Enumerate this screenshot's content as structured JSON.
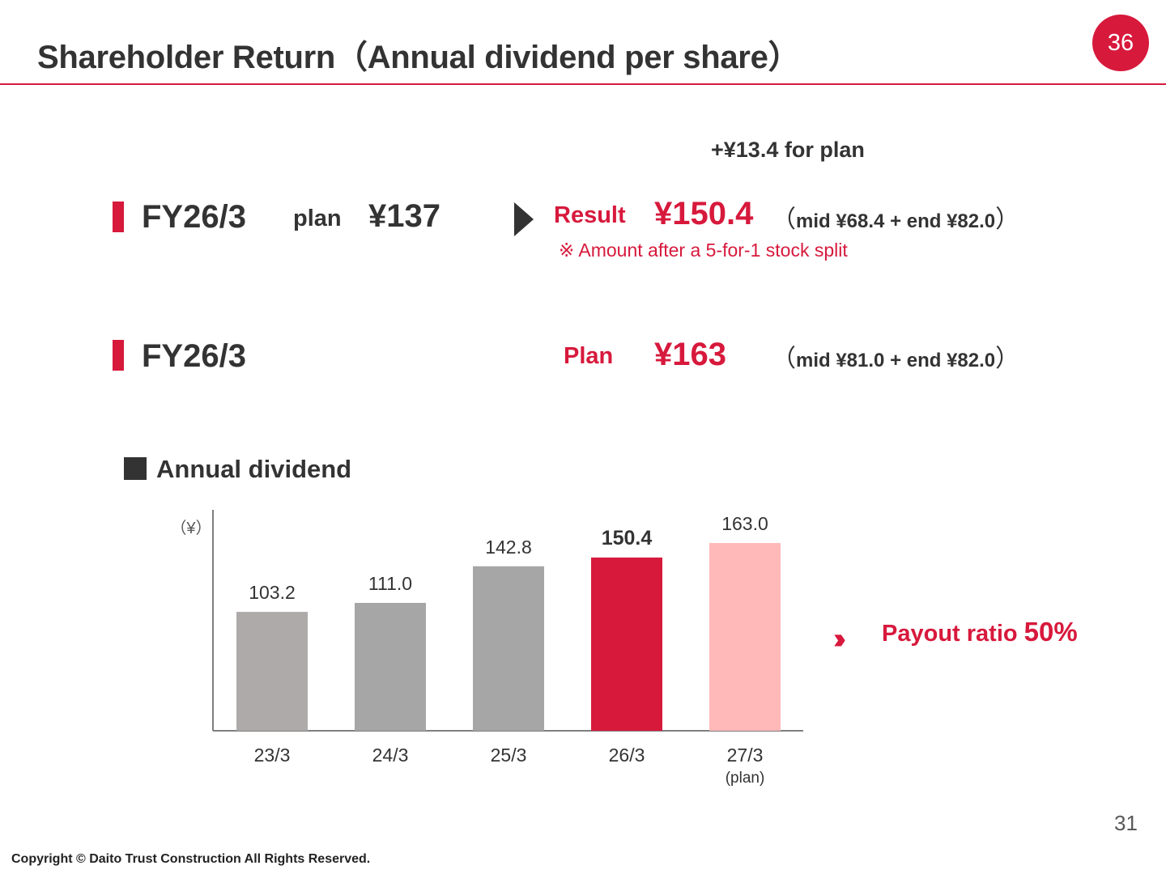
{
  "title": "Shareholder Return（Annual dividend per share）",
  "page_badge": "36",
  "delta_note": "+¥13.4 for plan",
  "row1": {
    "fy": "FY26/3",
    "plan_label": "plan",
    "plan_value": "¥137",
    "result_label": "Result",
    "result_value": "¥150.4",
    "paren_open": "（",
    "breakdown": "mid ¥68.4 + end ¥82.0",
    "paren_close": "）",
    "note": "※ Amount after a 5-for-1 stock split"
  },
  "row2": {
    "fy": "FY26/3",
    "plan_label": "Plan",
    "plan_value": "¥163",
    "paren_open": "（",
    "breakdown": "mid ¥81.0 + end ¥82.0",
    "paren_close": "）"
  },
  "section_title": "Annual dividend",
  "payout": {
    "label": "Payout ratio ",
    "value": "50%"
  },
  "chart_data": {
    "type": "bar",
    "y_unit": "（¥）",
    "categories": [
      "23/3",
      "24/3",
      "25/3",
      "26/3",
      "27/3"
    ],
    "category_sublabels": [
      "",
      "",
      "",
      "",
      "(plan)"
    ],
    "values": [
      103.2,
      111.0,
      142.8,
      150.4,
      163.0
    ],
    "value_labels": [
      "103.2",
      "111.0",
      "142.8",
      "150.4",
      "163.0"
    ],
    "bar_colors": [
      "#aeaaaa",
      "#a6a6a6",
      "#a6a6a6",
      "#d7193c",
      "#ffb9b9"
    ],
    "emphasized_index": 3,
    "ylim": [
      0,
      180
    ]
  },
  "page_number": "31",
  "copyright": "Copyright © Daito Trust Construction All Rights Reserved."
}
